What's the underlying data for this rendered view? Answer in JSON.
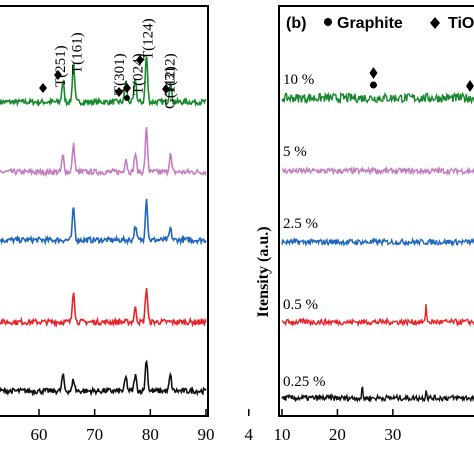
{
  "chart_data": [
    {
      "type": "line",
      "panel": "a",
      "title": "",
      "xlabel": "",
      "ylabel": "",
      "xlim": [
        53,
        90
      ],
      "xticks": [
        "60",
        "70",
        "80",
        "90"
      ],
      "peak_labels": [
        {
          "text": "T(251)",
          "x": 64.3
        },
        {
          "text": "T(161)",
          "x": 66.2
        },
        {
          "text": "T(301)",
          "x": 75.6
        },
        {
          "text": "T(024)",
          "x": 77.3
        },
        {
          "text": "T(124)",
          "x": 79.3
        },
        {
          "text": "T(312)",
          "x": 83.6
        },
        {
          "text": "G(112)",
          "x": 83.6
        }
      ],
      "series": [
        {
          "color": "#17882e",
          "peaks": [
            {
              "x": 64.3,
              "h": 0.45
            },
            {
              "x": 66.2,
              "h": 0.85
            },
            {
              "x": 75.6,
              "h": 0.45
            },
            {
              "x": 77.3,
              "h": 0.5
            },
            {
              "x": 79.3,
              "h": 1.0
            },
            {
              "x": 83.6,
              "h": 0.45
            }
          ]
        },
        {
          "color": "#c47fc0",
          "peaks": [
            {
              "x": 64.3,
              "h": 0.35
            },
            {
              "x": 66.2,
              "h": 0.6
            },
            {
              "x": 75.6,
              "h": 0.3
            },
            {
              "x": 77.3,
              "h": 0.4
            },
            {
              "x": 79.3,
              "h": 0.95
            },
            {
              "x": 83.6,
              "h": 0.4
            }
          ]
        },
        {
          "color": "#1f66bd",
          "peaks": [
            {
              "x": 66.2,
              "h": 0.7
            },
            {
              "x": 77.3,
              "h": 0.3
            },
            {
              "x": 79.3,
              "h": 0.9
            },
            {
              "x": 83.6,
              "h": 0.25
            }
          ]
        },
        {
          "color": "#e8252a",
          "peaks": [
            {
              "x": 66.2,
              "h": 0.7
            },
            {
              "x": 77.3,
              "h": 0.3
            },
            {
              "x": 79.3,
              "h": 0.75
            }
          ]
        },
        {
          "color": "#111111",
          "peaks": [
            {
              "x": 64.3,
              "h": 0.35
            },
            {
              "x": 66.2,
              "h": 0.25
            },
            {
              "x": 75.6,
              "h": 0.3
            },
            {
              "x": 77.3,
              "h": 0.35
            },
            {
              "x": 79.3,
              "h": 0.7
            },
            {
              "x": 83.6,
              "h": 0.35
            }
          ]
        }
      ]
    },
    {
      "type": "line",
      "panel": "b",
      "panel_label": "(b)",
      "legend": [
        "Graphite",
        "TiO"
      ],
      "title": "",
      "xlabel": "",
      "ylabel": "Itensity (a.u.)",
      "xlim": [
        10,
        45
      ],
      "xticks": [
        "10",
        "20",
        "30",
        "4"
      ],
      "series": [
        {
          "name": "10 %",
          "color": "#17882e",
          "peaks": []
        },
        {
          "name": "5 %",
          "color": "#c47fc0",
          "peaks": [
            {
              "x": 26.5,
              "h": 0.25
            }
          ]
        },
        {
          "name": "2.5 %",
          "color": "#1f66bd",
          "peaks": []
        },
        {
          "name": "0.5 %",
          "color": "#e8252a",
          "peaks": [
            {
              "x": 36.0,
              "h": 1.0
            }
          ]
        },
        {
          "name": "0.25 %",
          "color": "#111111",
          "peaks": [
            {
              "x": 24.5,
              "h": 0.6
            },
            {
              "x": 36.0,
              "h": 0.5
            }
          ]
        }
      ],
      "markers": [
        {
          "symbol": "diamond",
          "x": 26.5
        },
        {
          "symbol": "dot",
          "x": 26.5
        }
      ]
    }
  ]
}
